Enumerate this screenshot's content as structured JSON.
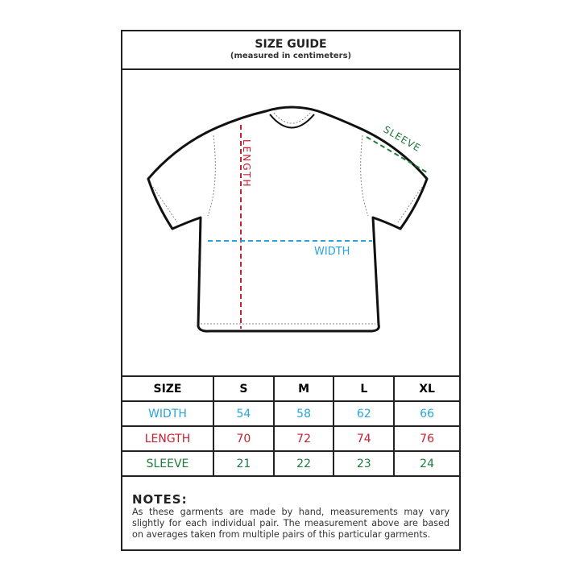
{
  "header": {
    "title": "SIZE GUIDE",
    "subtitle": "(measured in centimeters)"
  },
  "diagram": {
    "length_label": "LENGTH",
    "width_label": "WIDTH",
    "sleeve_label": "SLEEVE"
  },
  "colors": {
    "width": "#29a3dc",
    "length": "#c8202f",
    "sleeve": "#1e7a3c"
  },
  "table": {
    "headers": [
      "SIZE",
      "S",
      "M",
      "L",
      "XL"
    ],
    "rows": [
      {
        "label": "WIDTH",
        "values": [
          "54",
          "58",
          "62",
          "66"
        ],
        "color": "#29a3dc"
      },
      {
        "label": "LENGTH",
        "values": [
          "70",
          "72",
          "74",
          "76"
        ],
        "color": "#c8202f"
      },
      {
        "label": "SLEEVE",
        "values": [
          "21",
          "22",
          "23",
          "24"
        ],
        "color": "#1e7a3c"
      }
    ]
  },
  "notes": {
    "title": "NOTES:",
    "body": "As these garments are made by hand, measurements may vary slightly for each individual pair. The measurement above are based on averages taken from multiple pairs of this particular garments."
  }
}
